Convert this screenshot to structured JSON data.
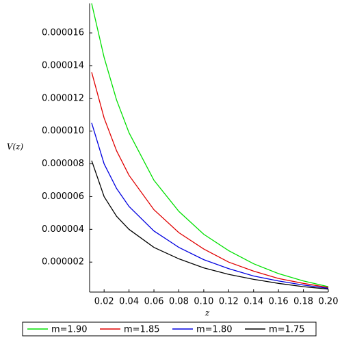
{
  "chart_data": {
    "type": "line",
    "x_label": "z",
    "y_label": "V(z)",
    "x": [
      0.01,
      0.02,
      0.03,
      0.04,
      0.06,
      0.08,
      0.1,
      0.12,
      0.14,
      0.16,
      0.18,
      0.2
    ],
    "series": [
      {
        "name": "m=1.90",
        "color": "#00e000",
        "values": [
          1.78e-05,
          1.45e-05,
          1.19e-05,
          9.9e-06,
          7e-06,
          5.1e-06,
          3.7e-06,
          2.7e-06,
          1.9e-06,
          1.3e-06,
          8.5e-07,
          5e-07
        ]
      },
      {
        "name": "m=1.85",
        "color": "#e00000",
        "values": [
          1.36e-05,
          1.08e-05,
          8.8e-06,
          7.3e-06,
          5.2e-06,
          3.8e-06,
          2.8e-06,
          2e-06,
          1.45e-06,
          1e-06,
          7e-07,
          4.5e-07
        ]
      },
      {
        "name": "m=1.80",
        "color": "#0000e0",
        "values": [
          1.05e-05,
          8e-06,
          6.5e-06,
          5.4e-06,
          3.9e-06,
          2.9e-06,
          2.15e-06,
          1.6e-06,
          1.15e-06,
          8.5e-07,
          6e-07,
          4e-07
        ]
      },
      {
        "name": "m=1.75",
        "color": "#000000",
        "values": [
          8.2e-06,
          6e-06,
          4.8e-06,
          4e-06,
          2.9e-06,
          2.2e-06,
          1.65e-06,
          1.25e-06,
          9.5e-07,
          7e-07,
          5e-07,
          3.5e-07
        ]
      }
    ],
    "xlim": [
      0.01,
      0.2
    ],
    "ylim": [
      1.7e-07,
      1.78e-05
    ],
    "xticks": [
      0.02,
      0.04,
      0.06,
      0.08,
      {
        "value": 0.1,
        "label": "0.10"
      },
      0.12,
      0.14,
      0.16,
      0.18,
      {
        "value": 0.2,
        "label": "0.20"
      }
    ],
    "yticks": [
      2e-06,
      4e-06,
      6e-06,
      8e-06,
      {
        "value": 1e-05,
        "label": "0.000010"
      },
      1.2e-05,
      1.4e-05,
      1.6e-05
    ],
    "legend": "bottom"
  }
}
